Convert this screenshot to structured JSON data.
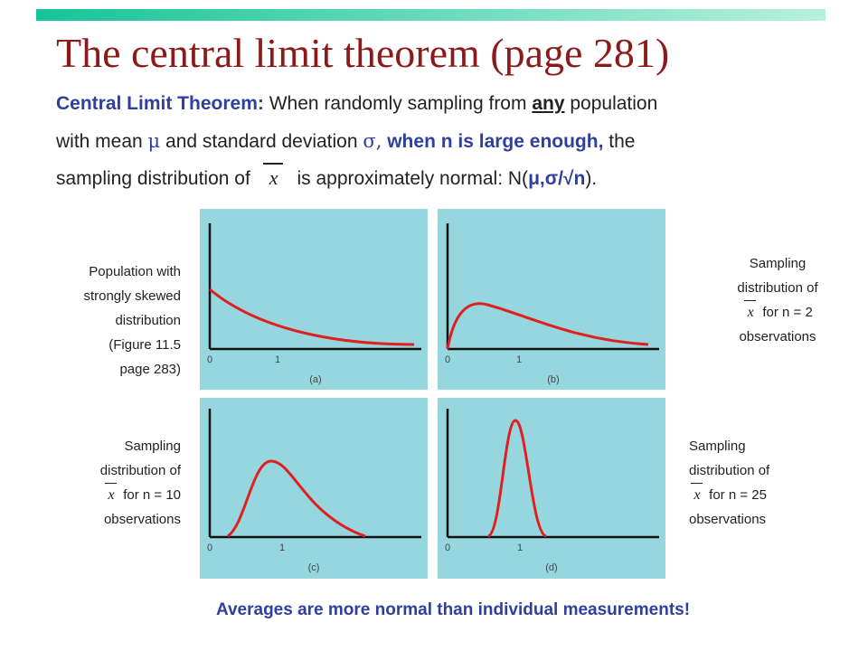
{
  "title": "The central limit theorem (page 281)",
  "intro": {
    "heading": "Central Limit Theorem:",
    "l1_a": " When randomly sampling from ",
    "l1_any": "any",
    "l1_b": " population",
    "l2_a": "with mean ",
    "mu": "μ",
    "l2_b": " and standard deviation ",
    "sigma": "σ,",
    "l2_c": " when n is large enough,",
    "l2_d": " the",
    "l3_a": "sampling distribution of",
    "xbar": "x",
    "l3_b": "is approximately normal: N(",
    "l3_c": "μ,σ/√n",
    "l3_d": ")."
  },
  "panels": [
    {
      "label": "(a)",
      "tick0": "0",
      "tick1": "1"
    },
    {
      "label": "(b)",
      "tick0": "0",
      "tick1": "1"
    },
    {
      "label": "(c)",
      "tick0": "0",
      "tick1": "1"
    },
    {
      "label": "(d)",
      "tick0": "0",
      "tick1": "1"
    }
  ],
  "captions": {
    "a": [
      "Population with",
      "strongly skewed",
      "distribution",
      "(Figure 11.5",
      "page 283)"
    ],
    "b": {
      "l1": "Sampling",
      "l2": "distribution of",
      "x": "x",
      "l3": "for n = 2",
      "l4": "observations"
    },
    "c": {
      "l1": "Sampling",
      "l2": "distribution of",
      "x": "x",
      "l3": "for n = 10",
      "l4": "observations"
    },
    "d": {
      "l1": "Sampling",
      "l2": "distribution of",
      "x": "x",
      "l3": "for n = 25",
      "l4": "observations"
    }
  },
  "footer": "Averages are more normal than individual measurements!",
  "colors": {
    "title": "#8b1a1a",
    "accent": "#2f3f9e",
    "panel_bg": "#96d7df",
    "curve": "#e02020"
  }
}
